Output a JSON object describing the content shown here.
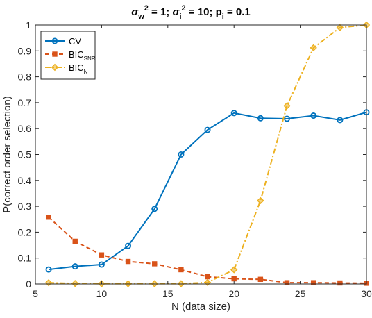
{
  "chart_data": {
    "type": "line",
    "title": {
      "parts": [
        {
          "t": "σ"
        },
        {
          "t": "w",
          "sub": true
        },
        {
          "t": "2",
          "sup": true
        },
        {
          "t": " = 1; "
        },
        {
          "t": "σ"
        },
        {
          "t": "i",
          "sub": true
        },
        {
          "t": "2",
          "sup": true
        },
        {
          "t": " = 10; "
        },
        {
          "t": "p"
        },
        {
          "t": "i",
          "sub": true
        },
        {
          "t": " = 0.1"
        }
      ]
    },
    "xlabel": "N (data size)",
    "ylabel": "P(correct order selection)",
    "xlim": [
      5,
      30
    ],
    "ylim": [
      0,
      1
    ],
    "xticks": [
      "5",
      "10",
      "15",
      "20",
      "25",
      "30"
    ],
    "yticks": [
      "0",
      "0.1",
      "0.2",
      "0.3",
      "0.4",
      "0.5",
      "0.6",
      "0.7",
      "0.8",
      "0.9",
      "1"
    ],
    "grid": false,
    "legend_position": "top-left",
    "x": [
      6,
      8,
      10,
      12,
      14,
      16,
      18,
      20,
      22,
      24,
      26,
      28,
      30
    ],
    "series": [
      {
        "name": "CV",
        "name_sub": "",
        "color": "#0072BD",
        "style": "solid",
        "marker": "circle",
        "values": [
          0.056,
          0.068,
          0.075,
          0.147,
          0.29,
          0.5,
          0.595,
          0.66,
          0.64,
          0.638,
          0.65,
          0.633,
          0.663
        ]
      },
      {
        "name": "BIC",
        "name_sub": "SNR",
        "color": "#D95319",
        "style": "dashed",
        "marker": "square",
        "values": [
          0.258,
          0.165,
          0.112,
          0.087,
          0.078,
          0.055,
          0.028,
          0.02,
          0.018,
          0.005,
          0.005,
          0.004,
          0.003
        ]
      },
      {
        "name": "BIC",
        "name_sub": "N",
        "color": "#EDB120",
        "style": "dashdot",
        "marker": "diamond",
        "values": [
          0.005,
          0.002,
          0.001,
          0.001,
          0.001,
          0.001,
          0.006,
          0.055,
          0.322,
          0.688,
          0.912,
          0.99,
          1.0
        ]
      }
    ]
  }
}
